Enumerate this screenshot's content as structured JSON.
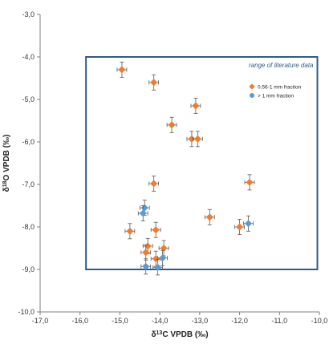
{
  "chart_data": {
    "type": "scatter",
    "xlabel_prefix": "δ",
    "xlabel_sup": "13",
    "xlabel_main": "C VPDB (‰)",
    "ylabel_prefix": "δ",
    "ylabel_sup": "18",
    "ylabel_main": "O VPDB (‰)",
    "xlim": [
      -17,
      -10
    ],
    "ylim": [
      -10,
      -3
    ],
    "x_ticks": [
      -17,
      -16,
      -15,
      -14,
      -13,
      -12,
      -11,
      -10
    ],
    "y_ticks": [
      -3,
      -4,
      -5,
      -6,
      -7,
      -8,
      -9,
      -10
    ],
    "x_tick_labels": [
      "-17,0",
      "-16,0",
      "-15,0",
      "-14,0",
      "-13,0",
      "-12,0",
      "-11,0",
      "-10,0"
    ],
    "y_tick_labels": [
      "-3,0",
      "-4,0",
      "-5,0",
      "-6,0",
      "-7,0",
      "-8,0",
      "-9,0",
      "-10,0"
    ],
    "grid": false,
    "legend_position": "top-right",
    "error_bar_x": 0.12,
    "error_bar_y": 0.18,
    "literature_box": {
      "label": "range of literature data",
      "x_range": [
        -15.85,
        -10.05
      ],
      "y_range": [
        -9.0,
        -4.0
      ],
      "color": "#2e5c8a"
    },
    "series": [
      {
        "name": "0.56-1 mm fraction",
        "color": "#ed7d31",
        "points": [
          {
            "x": -14.95,
            "y": -4.3
          },
          {
            "x": -14.15,
            "y": -4.6
          },
          {
            "x": -13.1,
            "y": -5.15
          },
          {
            "x": -13.7,
            "y": -5.6
          },
          {
            "x": -13.2,
            "y": -5.93
          },
          {
            "x": -13.05,
            "y": -5.93
          },
          {
            "x": -14.15,
            "y": -6.98
          },
          {
            "x": -11.75,
            "y": -6.95
          },
          {
            "x": -12.75,
            "y": -7.77
          },
          {
            "x": -12.0,
            "y": -8.0
          },
          {
            "x": -14.75,
            "y": -8.1
          },
          {
            "x": -14.1,
            "y": -8.07
          },
          {
            "x": -13.9,
            "y": -8.5
          },
          {
            "x": -14.3,
            "y": -8.45
          },
          {
            "x": -14.35,
            "y": -8.6
          },
          {
            "x": -14.1,
            "y": -8.75
          }
        ]
      },
      {
        "name": "> 1 mm fraction",
        "color": "#5b9bd5",
        "points": [
          {
            "x": -14.38,
            "y": -7.55
          },
          {
            "x": -14.42,
            "y": -7.68
          },
          {
            "x": -11.78,
            "y": -7.92
          },
          {
            "x": -13.93,
            "y": -8.73
          },
          {
            "x": -14.35,
            "y": -8.93
          },
          {
            "x": -14.05,
            "y": -8.95
          }
        ]
      }
    ]
  }
}
